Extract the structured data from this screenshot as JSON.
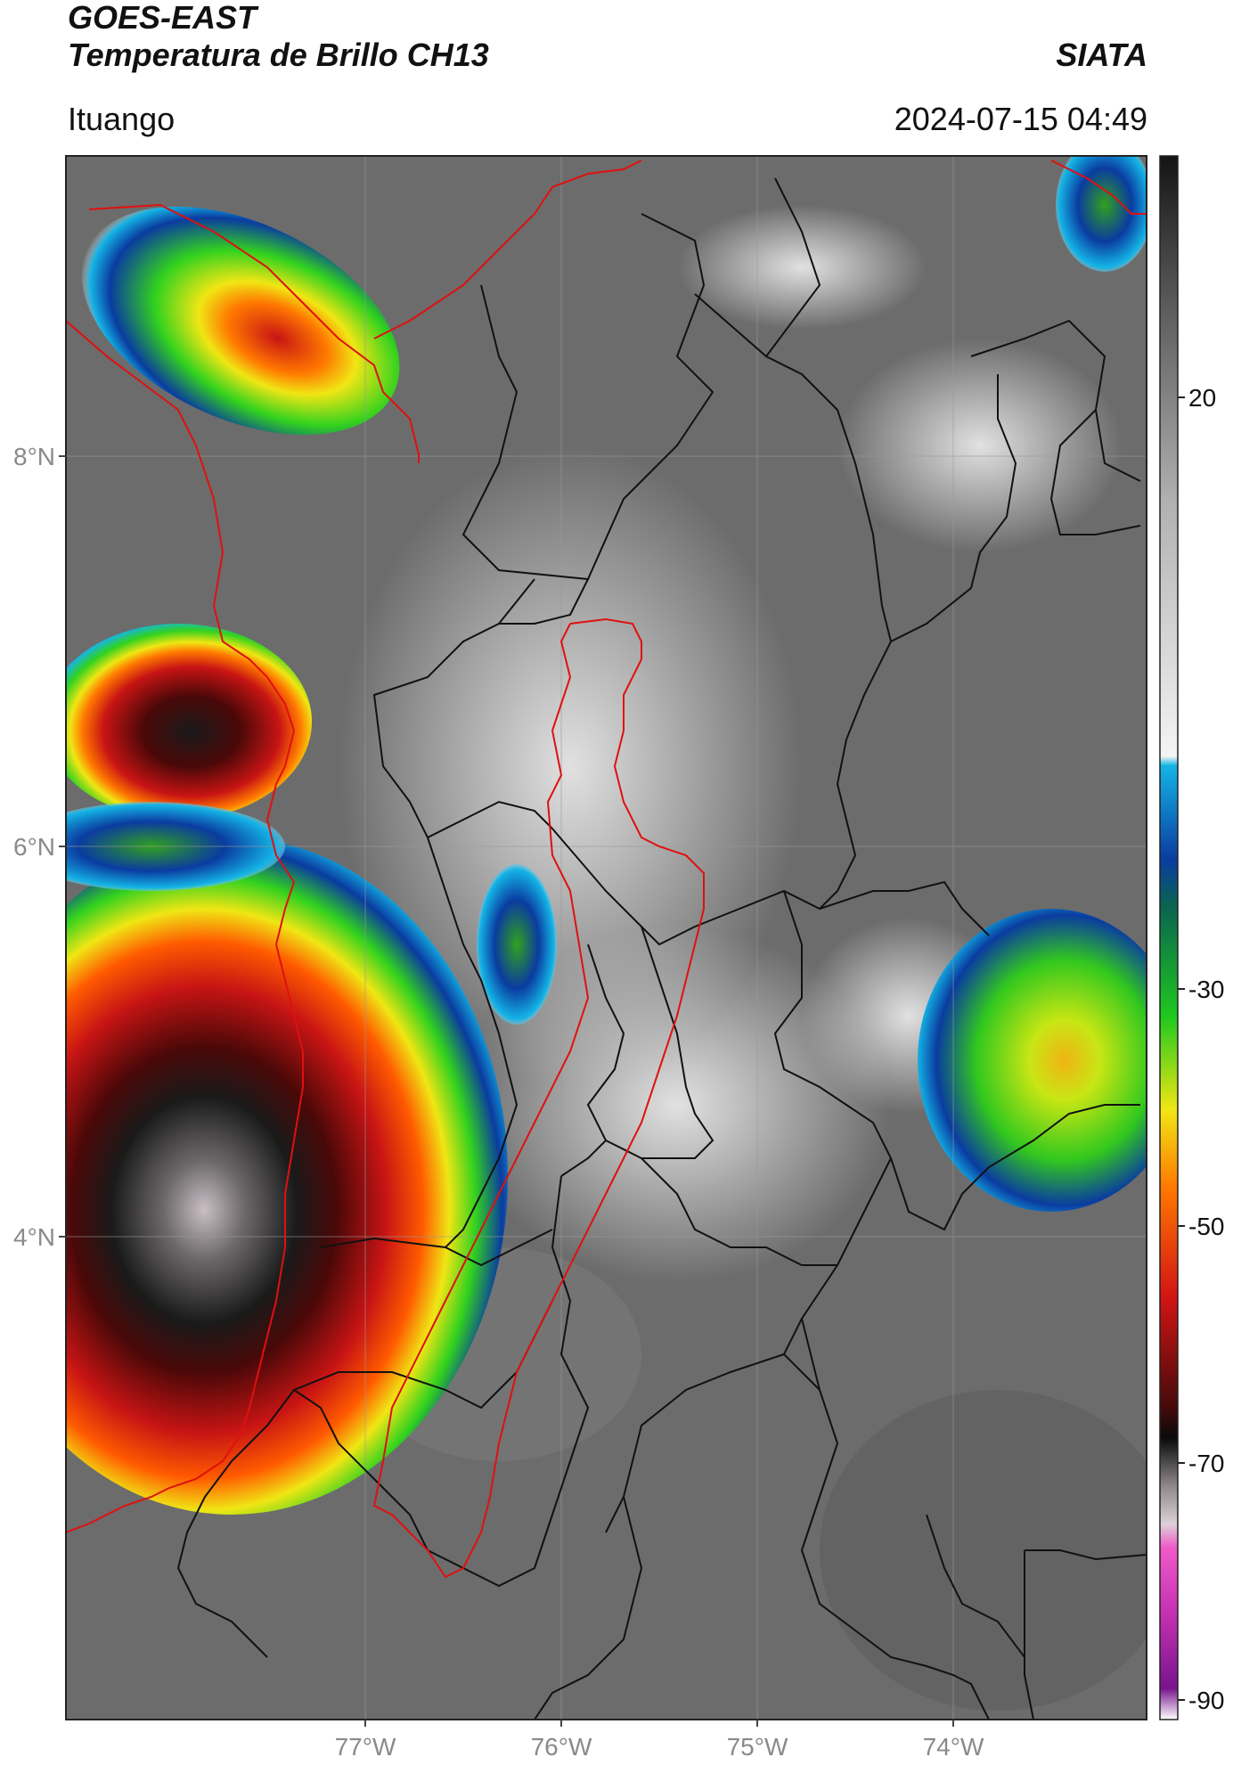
{
  "header": {
    "title_main": "GOES-EAST",
    "title_sub": "Temperatura de Brillo CH13",
    "organization": "SIATA",
    "region": "Ituango",
    "timestamp": "2024-07-15 04:49"
  },
  "axes": {
    "lat_ticks": [
      "8°N",
      "6°N",
      "4°N"
    ],
    "lon_ticks": [
      "77°W",
      "76°W",
      "75°W",
      "74°W"
    ]
  },
  "colorbar": {
    "unit": "",
    "ticks": [
      "20",
      "-30",
      "-50",
      "-70",
      "-90"
    ],
    "range": [
      -90,
      40
    ],
    "scale_colors": {
      "warm_gray": "#5a5a5a",
      "light_gray": "#e8e8e8",
      "cyan": "#14b4e6",
      "blue": "#0a3ca0",
      "green": "#1ec81e",
      "yellow": "#f0e614",
      "orange": "#ff7800",
      "red": "#d21414",
      "dark_red": "#460a0a",
      "black": "#0a0a0a",
      "pale": "#dcd2d8",
      "magenta": "#c832b4",
      "purple": "#78148c"
    }
  },
  "map": {
    "border_color": "#111111",
    "coast_color": "#e01010"
  }
}
